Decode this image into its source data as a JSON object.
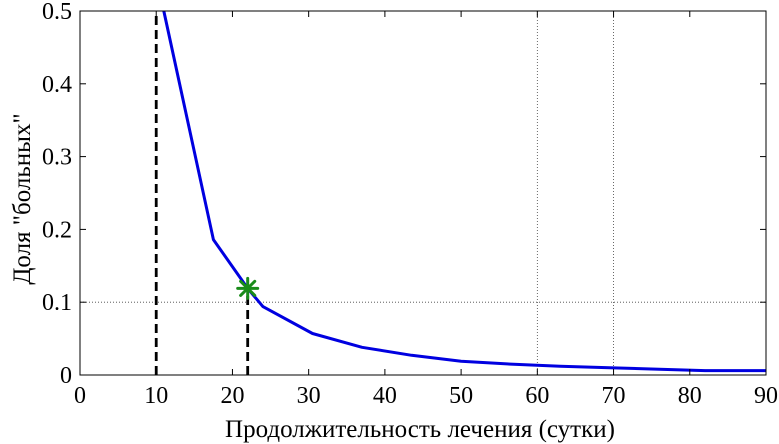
{
  "chart_data": {
    "type": "line",
    "xlabel": "Продолжительность лечения (сутки)",
    "ylabel": "Доля \"больных\"",
    "xlim": [
      0,
      90
    ],
    "ylim": [
      0,
      0.5
    ],
    "xticks": [
      0,
      10,
      20,
      30,
      40,
      50,
      60,
      70,
      80,
      90
    ],
    "yticks": [
      0,
      0.1,
      0.2,
      0.3,
      0.4,
      0.5
    ],
    "xtick_labels": [
      "0",
      "10",
      "20",
      "30",
      "40",
      "50",
      "60",
      "70",
      "80",
      "90"
    ],
    "ytick_labels": [
      "0",
      "0.1",
      "0.2",
      "0.3",
      "0.4",
      "0.5"
    ],
    "series": [
      {
        "color": "#0000e0",
        "x": [
          11,
          17.5,
          22,
          24,
          30.5,
          37,
          43.5,
          50,
          56.5,
          63,
          69.5,
          76,
          82,
          90
        ],
        "y": [
          0.5,
          0.186,
          0.119,
          0.094,
          0.057,
          0.038,
          0.027,
          0.019,
          0.015,
          0.012,
          0.01,
          0.008,
          0.006,
          0.006
        ]
      }
    ],
    "marker": {
      "x": 22,
      "y": 0.119,
      "symbol": "asterisk",
      "color": "#1a8c1a"
    },
    "vlines": [
      {
        "x": 10,
        "y_from": 0,
        "y_to": 0.5,
        "style": "dashed",
        "color": "#000000"
      },
      {
        "x": 22,
        "y_from": 0,
        "y_to": 0.119,
        "style": "dashed",
        "color": "#000000"
      }
    ],
    "grid": {
      "x": [
        60,
        70
      ],
      "y": [
        0.1
      ],
      "style": "dotted"
    }
  }
}
